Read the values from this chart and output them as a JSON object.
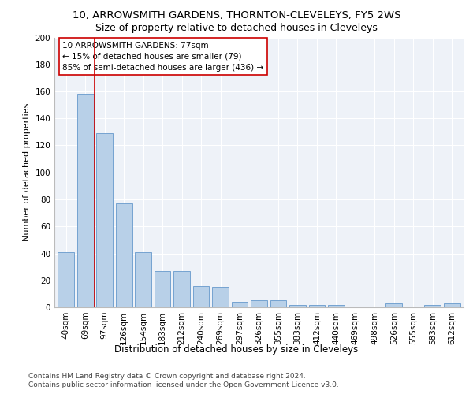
{
  "title1": "10, ARROWSMITH GARDENS, THORNTON-CLEVELEYS, FY5 2WS",
  "title2": "Size of property relative to detached houses in Cleveleys",
  "xlabel": "Distribution of detached houses by size in Cleveleys",
  "ylabel": "Number of detached properties",
  "categories": [
    "40sqm",
    "69sqm",
    "97sqm",
    "126sqm",
    "154sqm",
    "183sqm",
    "212sqm",
    "240sqm",
    "269sqm",
    "297sqm",
    "326sqm",
    "355sqm",
    "383sqm",
    "412sqm",
    "440sqm",
    "469sqm",
    "498sqm",
    "526sqm",
    "555sqm",
    "583sqm",
    "612sqm"
  ],
  "values": [
    41,
    158,
    129,
    77,
    41,
    27,
    27,
    16,
    15,
    4,
    5,
    5,
    2,
    2,
    2,
    0,
    0,
    3,
    0,
    2,
    3
  ],
  "bar_color": "#b8d0e8",
  "bar_edge_color": "#6699cc",
  "redline_color": "#cc0000",
  "annotation_line1": "10 ARROWSMITH GARDENS: 77sqm",
  "annotation_line2": "← 15% of detached houses are smaller (79)",
  "annotation_line3": "85% of semi-detached houses are larger (436) →",
  "annotation_box_color": "#ffffff",
  "annotation_box_edge_color": "#cc0000",
  "ylim": [
    0,
    200
  ],
  "yticks": [
    0,
    20,
    40,
    60,
    80,
    100,
    120,
    140,
    160,
    180,
    200
  ],
  "footer1": "Contains HM Land Registry data © Crown copyright and database right 2024.",
  "footer2": "Contains public sector information licensed under the Open Government Licence v3.0.",
  "bg_color": "#eef2f8",
  "title1_fontsize": 9.5,
  "title2_fontsize": 9,
  "xlabel_fontsize": 8.5,
  "ylabel_fontsize": 8,
  "tick_fontsize": 7.5,
  "annotation_fontsize": 7.5,
  "footer_fontsize": 6.5
}
